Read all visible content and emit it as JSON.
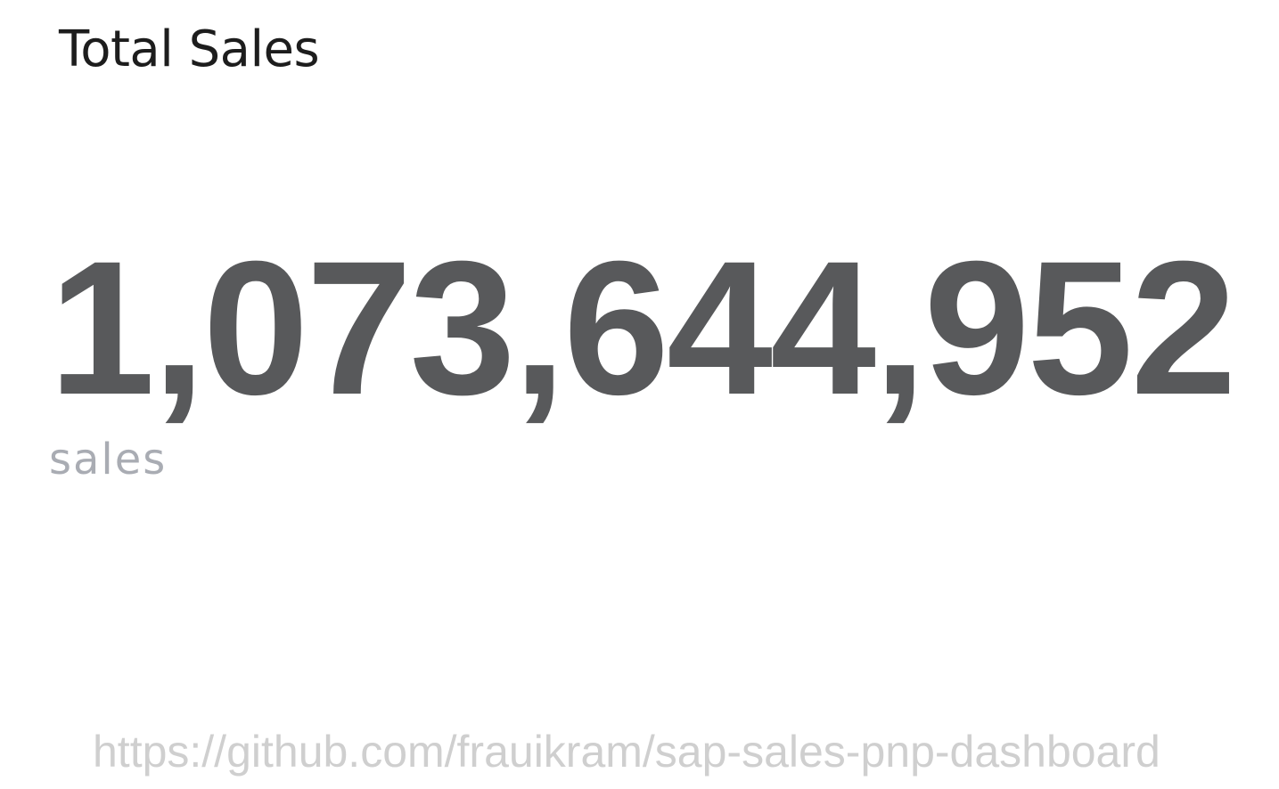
{
  "tile": {
    "title": "Total Sales",
    "value": "1,073,644,952",
    "unit": "sales"
  },
  "watermark": {
    "text": "https://github.com/frauikram/sap-sales-pnp-dashboard"
  },
  "colors": {
    "title": "#1d1d1d",
    "value": "#58595b",
    "unit": "#a9acb3",
    "watermark": "#cfcfcf",
    "background": "#ffffff"
  }
}
